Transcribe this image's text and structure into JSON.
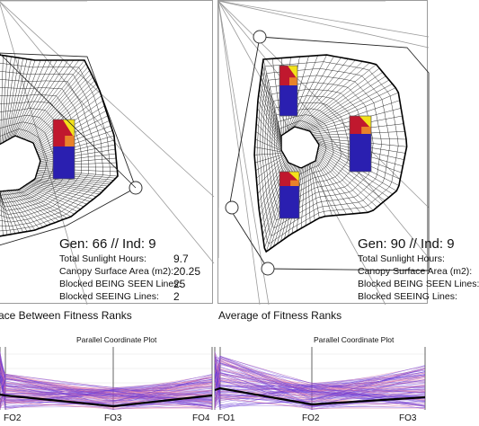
{
  "left_panel": {
    "gen_label": "Gen: 66 // Ind: 9",
    "stats": [
      {
        "label": "Total Sunlight Hours:",
        "value": "9.7"
      },
      {
        "label": "Canopy Surface Area (m2):",
        "value": "20.25"
      },
      {
        "label": "Blocked BEING SEEN Lines:",
        "value": "25"
      },
      {
        "label": "Blocked SEEING Lines:",
        "value": "2"
      }
    ]
  },
  "right_panel": {
    "gen_label": "Gen: 90 // Ind: 9",
    "stats": [
      {
        "label": "Total Sunlight Hours:",
        "value": ""
      },
      {
        "label": "Canopy Surface Area (m2):",
        "value": ""
      },
      {
        "label": "Blocked BEING SEEN Lines:",
        "value": ""
      },
      {
        "label": "Blocked SEEING Lines:",
        "value": ""
      }
    ]
  },
  "bottom_left": {
    "section_title": "ace Between Fitness Ranks",
    "plot_title": "Parallel Coordinate Plot",
    "axes": [
      "FO2",
      "FO3",
      "FO4"
    ]
  },
  "bottom_right": {
    "section_title": "Average of Fitness Ranks",
    "plot_title": "Parallel Coordinate Plot",
    "axes": [
      "FO1",
      "FO2",
      "FO3"
    ]
  },
  "colors": {
    "mesh": "#1a1a1a",
    "panel_blue": "#2a1fb0",
    "panel_red": "#c0182e",
    "panel_yellow": "#f3e21a",
    "panel_orange": "#e8822a",
    "guide_line": "#9a9a9a",
    "pc_purple": "#6b3bd6",
    "pc_pink": "#e77aa0",
    "pc_black": "#000000"
  }
}
